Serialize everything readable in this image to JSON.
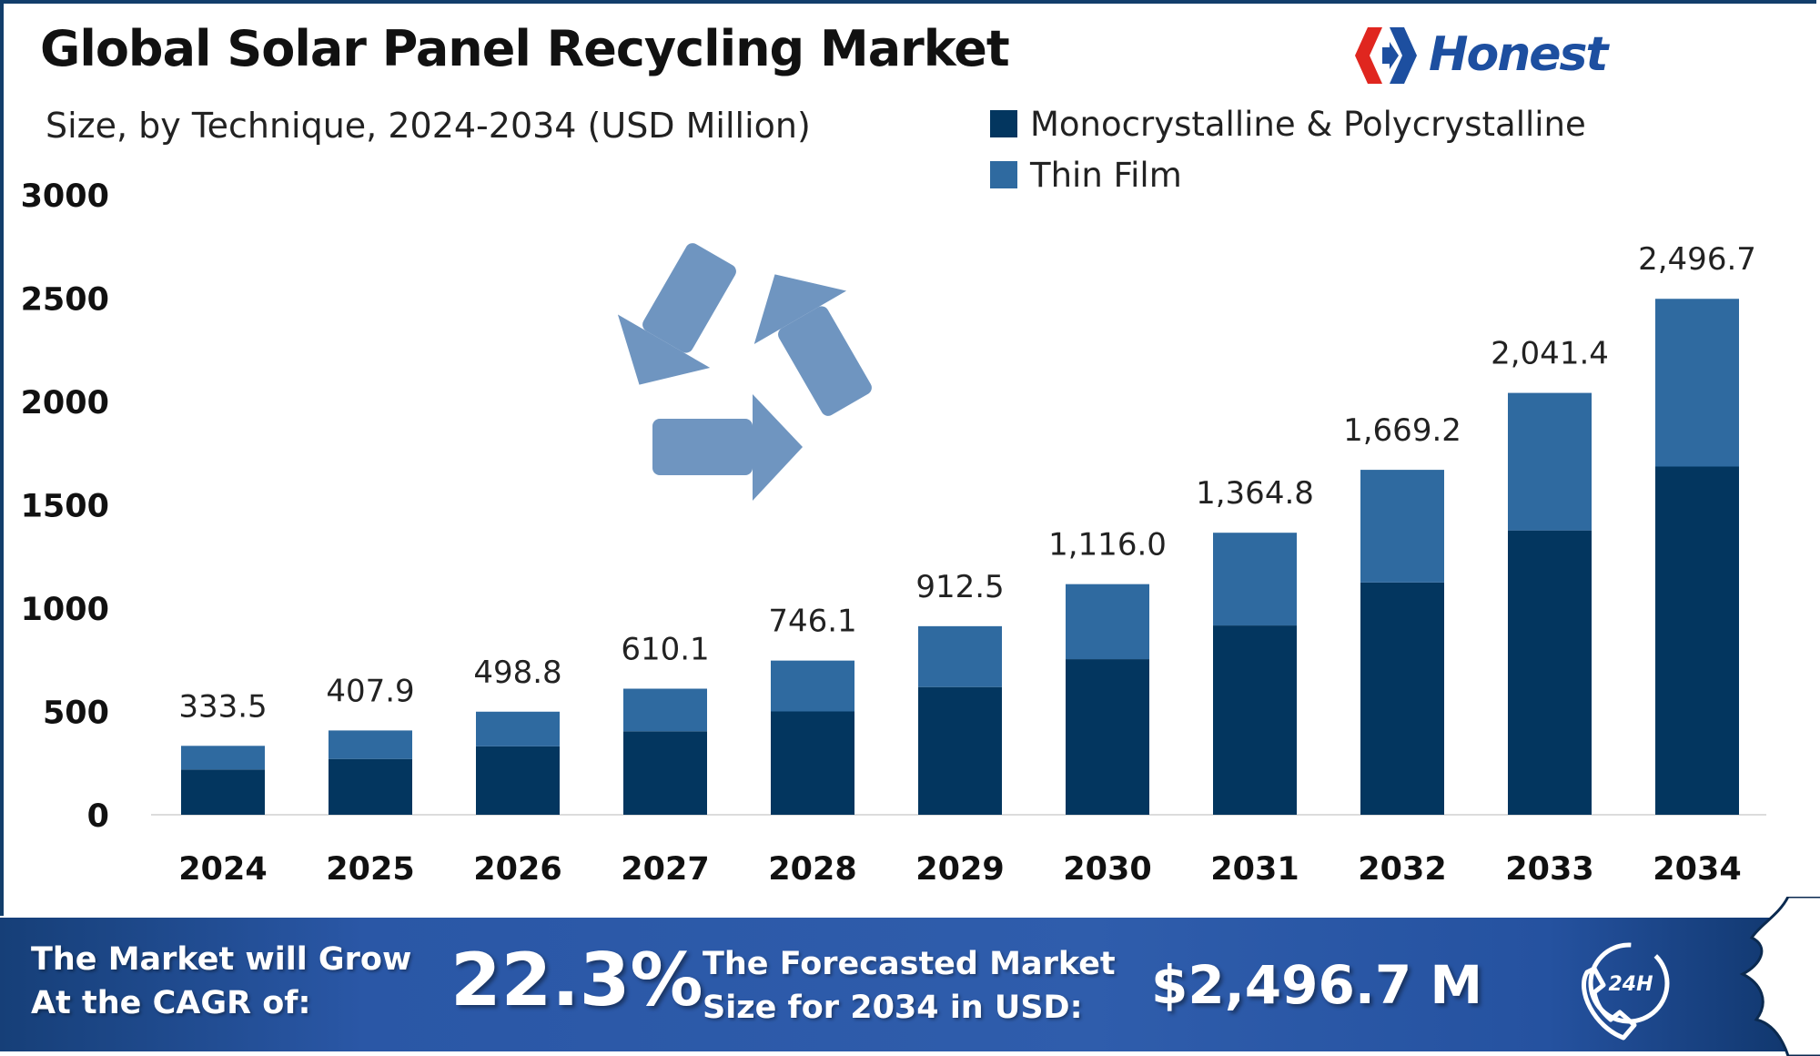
{
  "header": {
    "title": "Global Solar Panel Recycling Market",
    "subtitle": "Size, by Technique, 2024-2034 (USD Million)",
    "logo_text": "Honest"
  },
  "colors": {
    "mono": "#03365f",
    "thin": "#2f6aa0",
    "recycle_icon": "#6f95c0",
    "footer": "#2a57a6"
  },
  "chart_data": {
    "type": "bar",
    "stacked": true,
    "title": "Global Solar Panel Recycling Market",
    "subtitle": "Size, by Technique, 2024-2034 (USD Million)",
    "categories": [
      "2024",
      "2025",
      "2026",
      "2027",
      "2028",
      "2029",
      "2030",
      "2031",
      "2032",
      "2033",
      "2034"
    ],
    "series": [
      {
        "name": "Monocrystalline & Polycrystalline",
        "values": [
          219,
          270,
          331,
          404,
          500,
          618,
          753,
          916,
          1124,
          1376,
          1685
        ]
      },
      {
        "name": "Thin Film",
        "values": [
          114.5,
          137.9,
          167.8,
          206.1,
          246.1,
          294.5,
          363.0,
          448.8,
          545.2,
          665.4,
          811.7
        ]
      }
    ],
    "totals": [
      333.5,
      407.9,
      498.8,
      610.1,
      746.1,
      912.5,
      1116.0,
      1364.8,
      1669.2,
      2041.4,
      2496.7
    ],
    "total_labels": [
      "333.5",
      "407.9",
      "498.8",
      "610.1",
      "746.1",
      "912.5",
      "1,116.0",
      "1,364.8",
      "1,669.2",
      "2,041.4",
      "2,496.7"
    ],
    "ylim": [
      0,
      3000
    ],
    "yticks": [
      "0",
      "500",
      "1000",
      "1500",
      "2000",
      "2500",
      "3000"
    ],
    "ytick_values": [
      0,
      500,
      1000,
      1500,
      2000,
      2500,
      3000
    ],
    "grid": false,
    "legend_position": "top-right"
  },
  "legend": [
    {
      "label": "Monocrystalline & Polycrystalline"
    },
    {
      "label": "Thin Film"
    }
  ],
  "footer": {
    "cagr_line1": "The Market will Grow",
    "cagr_line2": "At the CAGR of:",
    "cagr_value": "22.3%",
    "forecast_line1": "The Forecasted Market",
    "forecast_line2": "Size for 2034 in USD:",
    "forecast_value": "$2,496.7 M",
    "support_icon_text": "24H"
  },
  "icons": [
    "recycle-icon",
    "honest-logo-icon",
    "phone-24h-icon"
  ]
}
